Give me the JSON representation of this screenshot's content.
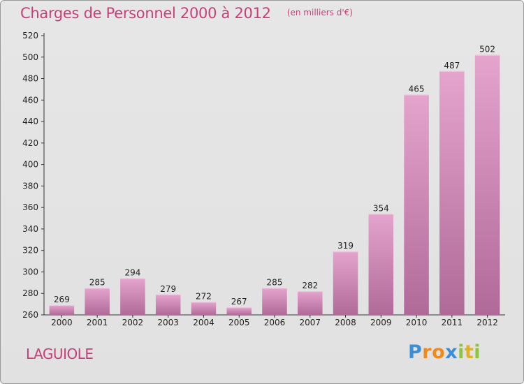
{
  "header": {
    "title": "Charges de Personnel 2000 à 2012",
    "subtitle": "(en milliers d'€)"
  },
  "footer": {
    "commune": "LAGUIOLE",
    "logo": {
      "text": "Proxiti",
      "letters": [
        {
          "ch": "P",
          "color": "#3a8fd6"
        },
        {
          "ch": "r",
          "color": "#f08a1c"
        },
        {
          "ch": "o",
          "color": "#f08a1c"
        },
        {
          "ch": "x",
          "color": "#3a8fd6"
        },
        {
          "ch": "i",
          "color": "#8cc43a"
        },
        {
          "ch": "t",
          "color": "#e0b020"
        },
        {
          "ch": "i",
          "color": "#8cc43a"
        }
      ]
    }
  },
  "colors": {
    "title": "#c8407a",
    "bar_top": "#e4a4cc",
    "bar_bottom": "#b06a98",
    "background": "#e3e3e3"
  },
  "chart_data": {
    "type": "bar",
    "categories": [
      "2000",
      "2001",
      "2002",
      "2003",
      "2004",
      "2005",
      "2006",
      "2007",
      "2008",
      "2009",
      "2010",
      "2011",
      "2012"
    ],
    "values": [
      269,
      285,
      294,
      279,
      272,
      267,
      285,
      282,
      319,
      354,
      465,
      487,
      502
    ],
    "title": "Charges de Personnel 2000 à 2012",
    "subtitle": "(en milliers d'€)",
    "ylim": [
      260,
      520
    ],
    "yticks": [
      260,
      280,
      300,
      320,
      340,
      360,
      380,
      400,
      420,
      440,
      460,
      480,
      500,
      520
    ],
    "data_labels": true,
    "grid": false,
    "legend": "none"
  }
}
